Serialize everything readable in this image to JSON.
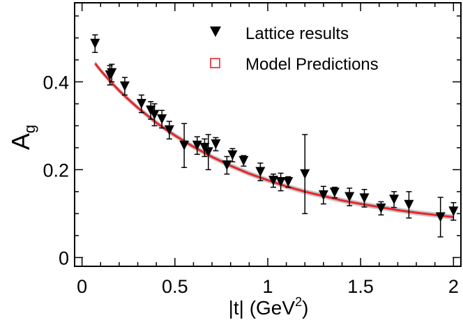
{
  "chart_data": {
    "type": "scatter",
    "xlabel_main": "|t| (GeV",
    "xlabel_sup": "2",
    "xlabel_close": ")",
    "ylabel_main": "A",
    "ylabel_sub": "g",
    "xlim": [
      -0.04,
      2.04
    ],
    "ylim": [
      -0.02,
      0.58
    ],
    "x_ticks": [
      {
        "value": 0,
        "label": "0"
      },
      {
        "value": 0.5,
        "label": "0.5"
      },
      {
        "value": 1,
        "label": "1"
      },
      {
        "value": 1.5,
        "label": "1.5"
      },
      {
        "value": 2,
        "label": "2"
      }
    ],
    "y_ticks": [
      {
        "value": 0,
        "label": "0"
      },
      {
        "value": 0.2,
        "label": "0.2"
      },
      {
        "value": 0.4,
        "label": "0.4"
      }
    ],
    "legend": {
      "position": "top-right",
      "entries": [
        {
          "label": "Lattice results",
          "marker": "down-triangle"
        },
        {
          "label": "Model Predictions",
          "marker": "open-square"
        }
      ]
    },
    "series": [
      {
        "name": "Lattice results",
        "points": [
          {
            "x": 0.07,
            "y": 0.487,
            "err": 0.02
          },
          {
            "x": 0.15,
            "y": 0.415,
            "err": 0.022
          },
          {
            "x": 0.16,
            "y": 0.42,
            "err": 0.02
          },
          {
            "x": 0.23,
            "y": 0.39,
            "err": 0.02
          },
          {
            "x": 0.32,
            "y": 0.35,
            "err": 0.02
          },
          {
            "x": 0.37,
            "y": 0.335,
            "err": 0.02
          },
          {
            "x": 0.39,
            "y": 0.325,
            "err": 0.025
          },
          {
            "x": 0.43,
            "y": 0.315,
            "err": 0.02
          },
          {
            "x": 0.47,
            "y": 0.29,
            "err": 0.02
          },
          {
            "x": 0.55,
            "y": 0.255,
            "err": 0.05
          },
          {
            "x": 0.62,
            "y": 0.255,
            "err": 0.02
          },
          {
            "x": 0.66,
            "y": 0.25,
            "err": 0.02
          },
          {
            "x": 0.68,
            "y": 0.24,
            "err": 0.04
          },
          {
            "x": 0.72,
            "y": 0.258,
            "err": 0.015
          },
          {
            "x": 0.78,
            "y": 0.21,
            "err": 0.02
          },
          {
            "x": 0.81,
            "y": 0.233,
            "err": 0.015
          },
          {
            "x": 0.87,
            "y": 0.22,
            "err": 0.012
          },
          {
            "x": 0.96,
            "y": 0.195,
            "err": 0.02
          },
          {
            "x": 1.03,
            "y": 0.175,
            "err": 0.015
          },
          {
            "x": 1.07,
            "y": 0.172,
            "err": 0.02
          },
          {
            "x": 1.11,
            "y": 0.172,
            "err": 0.012
          },
          {
            "x": 1.2,
            "y": 0.19,
            "err": 0.09
          },
          {
            "x": 1.3,
            "y": 0.142,
            "err": 0.02
          },
          {
            "x": 1.36,
            "y": 0.148,
            "err": 0.012
          },
          {
            "x": 1.44,
            "y": 0.138,
            "err": 0.02
          },
          {
            "x": 1.52,
            "y": 0.135,
            "err": 0.02
          },
          {
            "x": 1.61,
            "y": 0.112,
            "err": 0.015
          },
          {
            "x": 1.68,
            "y": 0.132,
            "err": 0.018
          },
          {
            "x": 1.76,
            "y": 0.12,
            "err": 0.03
          },
          {
            "x": 1.93,
            "y": 0.092,
            "err": 0.045
          },
          {
            "x": 2.0,
            "y": 0.105,
            "err": 0.02
          }
        ]
      },
      {
        "name": "Model Predictions",
        "x": [
          0.07,
          0.1,
          0.15,
          0.2,
          0.25,
          0.3,
          0.35,
          0.4,
          0.45,
          0.5,
          0.6,
          0.7,
          0.8,
          0.9,
          1.0,
          1.1,
          1.2,
          1.3,
          1.4,
          1.5,
          1.6,
          1.7,
          1.8,
          1.9,
          2.0
        ],
        "y": [
          0.442,
          0.426,
          0.402,
          0.38,
          0.36,
          0.341,
          0.324,
          0.307,
          0.292,
          0.278,
          0.252,
          0.229,
          0.209,
          0.191,
          0.176,
          0.162,
          0.15,
          0.14,
          0.13,
          0.122,
          0.115,
          0.108,
          0.102,
          0.097,
          0.092
        ],
        "band_half_width": 0.006
      }
    ]
  }
}
